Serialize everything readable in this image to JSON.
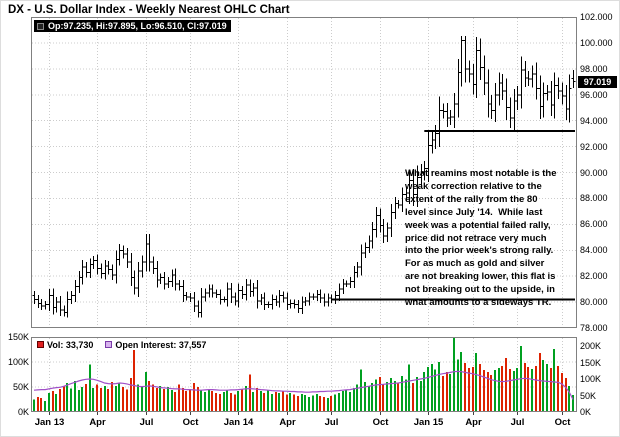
{
  "title": "DX - U.S. Dollar Index - Weekly Nearest OHLC Chart",
  "quote_legend": {
    "text": "Op:97.235, Hi:97.895, Lo:96.510, Cl:97.019"
  },
  "last_price_label": "97.019",
  "annotation": "What reamins most notable is the\nweak correction relative to the\nextent of the rally from the 80\nlevel since July '14.  While last\nweek was a potential failed rally,\nprice did not retrace very much\ninto the prior week's strong rally.\nFor as much as gold and silver\nare not breaking lower, this flat is\nnot breaking out to the upside, in\nwhat amounts to a sideways TR.",
  "volume_legend": {
    "vol": "Vol: 33,730",
    "oi": "Open Interest: 37,557"
  },
  "colors": {
    "up_volume": "#00a020",
    "down_volume": "#dd2200",
    "open_interest": "#a050c8",
    "ohlc_bars": "#000000",
    "trendline": "#000000",
    "tag_bg": "#000000",
    "tag_fg": "#ffffff",
    "grid": "#cccccc",
    "panel_border": "#808080"
  },
  "chart_data": {
    "type": "ohlc",
    "symbol": "DX - U.S. Dollar Index, Weekly Nearest",
    "title": "DX - U.S. Dollar Index - Weekly Nearest OHLC Chart",
    "y_axis": {
      "min": 78,
      "max": 102,
      "step": 2,
      "tick_labels": [
        "102.000",
        "100.000",
        "98.000",
        "96.000",
        "94.000",
        "92.000",
        "90.000",
        "88.000",
        "86.000",
        "84.000",
        "82.000",
        "80.000",
        "78.000"
      ]
    },
    "x_ticks": [
      {
        "label": "Jan 13",
        "index": 4
      },
      {
        "label": "Apr",
        "index": 17
      },
      {
        "label": "Jul",
        "index": 30
      },
      {
        "label": "Oct",
        "index": 42
      },
      {
        "label": "Jan 14",
        "index": 55
      },
      {
        "label": "Apr",
        "index": 68
      },
      {
        "label": "Jul",
        "index": 80
      },
      {
        "label": "Oct",
        "index": 93
      },
      {
        "label": "Jan 15",
        "index": 106
      },
      {
        "label": "Apr",
        "index": 118
      },
      {
        "label": "Jul",
        "index": 130
      },
      {
        "label": "Oct",
        "index": 142
      }
    ],
    "closes": [
      80.2,
      79.9,
      79.7,
      79.8,
      80.5,
      79.6,
      80.0,
      79.4,
      79.2,
      80.2,
      80.5,
      81.2,
      81.9,
      82.7,
      82.3,
      82.9,
      83.2,
      82.6,
      82.2,
      82.8,
      82.5,
      82.1,
      83.3,
      84.0,
      83.7,
      83.1,
      81.9,
      81.1,
      82.4,
      83.1,
      84.5,
      83.1,
      82.6,
      81.7,
      81.9,
      81.4,
      81.6,
      82.1,
      81.4,
      81.2,
      80.5,
      80.4,
      80.3,
      79.7,
      79.2,
      80.4,
      80.7,
      81.0,
      80.7,
      80.6,
      80.2,
      80.2,
      81.0,
      80.4,
      80.1,
      80.9,
      80.6,
      81.3,
      80.8,
      81.1,
      80.1,
      80.3,
      79.8,
      79.8,
      80.2,
      80.0,
      80.5,
      80.3,
      79.8,
      79.9,
      79.8,
      79.5,
      80.0,
      80.1,
      80.4,
      80.4,
      80.6,
      80.3,
      80.0,
      80.3,
      80.2,
      80.5,
      81.0,
      81.4,
      81.4,
      81.6,
      82.3,
      82.7,
      83.8,
      84.2,
      84.7,
      85.6,
      86.7,
      85.9,
      85.1,
      85.7,
      86.9,
      87.6,
      87.5,
      88.3,
      88.4,
      89.4,
      88.3,
      89.6,
      90.0,
      90.3,
      92.1,
      92.5,
      93.0,
      94.8,
      94.7,
      94.2,
      94.3,
      95.3,
      97.7,
      100.2,
      98.0,
      97.6,
      96.8,
      99.4,
      98.1,
      96.9,
      95.3,
      94.8,
      96.0,
      96.9,
      96.3,
      95.0,
      94.2,
      95.5,
      96.0,
      97.9,
      97.3,
      97.2,
      97.6,
      96.5,
      95.1,
      96.1,
      96.2,
      95.2,
      96.7,
      96.3,
      95.9,
      94.9,
      96.5,
      97.019
    ],
    "last_bar": {
      "open": 97.235,
      "high": 97.895,
      "low": 96.51,
      "close": 97.019
    },
    "volume_thousands": [
      25,
      30,
      28,
      22,
      38,
      42,
      36,
      46,
      52,
      58,
      47,
      62,
      44,
      50,
      56,
      95,
      48,
      55,
      48,
      52,
      46,
      60,
      52,
      58,
      50,
      45,
      68,
      130,
      55,
      50,
      80,
      62,
      55,
      48,
      52,
      46,
      50,
      44,
      40,
      55,
      48,
      42,
      46,
      58,
      50,
      44,
      40,
      45,
      42,
      38,
      36,
      40,
      44,
      38,
      35,
      42,
      46,
      52,
      75,
      40,
      48,
      42,
      38,
      44,
      36,
      40,
      38,
      42,
      35,
      38,
      35,
      32,
      36,
      34,
      30,
      33,
      36,
      32,
      30,
      28,
      32,
      35,
      38,
      42,
      45,
      40,
      48,
      55,
      85,
      60,
      52,
      58,
      65,
      70,
      55,
      60,
      68,
      62,
      58,
      72,
      65,
      95,
      58,
      70,
      62,
      80,
      90,
      96,
      85,
      100,
      72,
      80,
      76,
      148,
      105,
      120,
      98,
      88,
      90,
      118,
      96,
      84,
      80,
      74,
      84,
      88,
      92,
      108,
      86,
      82,
      88,
      132,
      98,
      90,
      86,
      92,
      118,
      104,
      96,
      88,
      126,
      92,
      78,
      68,
      52,
      34
    ],
    "open_interest_thousands": [
      66,
      67,
      68,
      68,
      70,
      72,
      74,
      75,
      78,
      82,
      86,
      90,
      94,
      97,
      99,
      100,
      99,
      96,
      92,
      88,
      86,
      85,
      86,
      88,
      87,
      85,
      82,
      80,
      78,
      77,
      78,
      79,
      78,
      76,
      74,
      73,
      72,
      71,
      70,
      70,
      69,
      68,
      68,
      67,
      66,
      66,
      67,
      68,
      68,
      67,
      66,
      66,
      66,
      67,
      67,
      68,
      69,
      70,
      71,
      70,
      69,
      68,
      67,
      66,
      65,
      64,
      64,
      63,
      63,
      62,
      62,
      61,
      61,
      60,
      60,
      61,
      61,
      62,
      62,
      63,
      63,
      64,
      65,
      66,
      67,
      68,
      70,
      72,
      74,
      76,
      78,
      80,
      82,
      83,
      84,
      85,
      86,
      87,
      88,
      90,
      92,
      94,
      96,
      98,
      100,
      102,
      105,
      108,
      111,
      114,
      116,
      118,
      120,
      122,
      123,
      122,
      120,
      118,
      116,
      113,
      110,
      106,
      102,
      98,
      95,
      93,
      92,
      93,
      95,
      97,
      99,
      101,
      102,
      101,
      99,
      97,
      95,
      94,
      93,
      92,
      91,
      90,
      85,
      75,
      60,
      38
    ],
    "volume_axis": {
      "left_labels": [
        "150K",
        "100K",
        "50K",
        "0K"
      ],
      "right_labels": [
        "200K",
        "150K",
        "100K",
        "50K",
        "0K"
      ],
      "left_max": 150000,
      "right_scale_max": 200000
    },
    "trendlines": [
      {
        "price": 93.2,
        "from_index": 105
      },
      {
        "price": 80.2,
        "from_index": 80
      }
    ],
    "current": {
      "volume": 33730,
      "open_interest": 37557
    }
  }
}
